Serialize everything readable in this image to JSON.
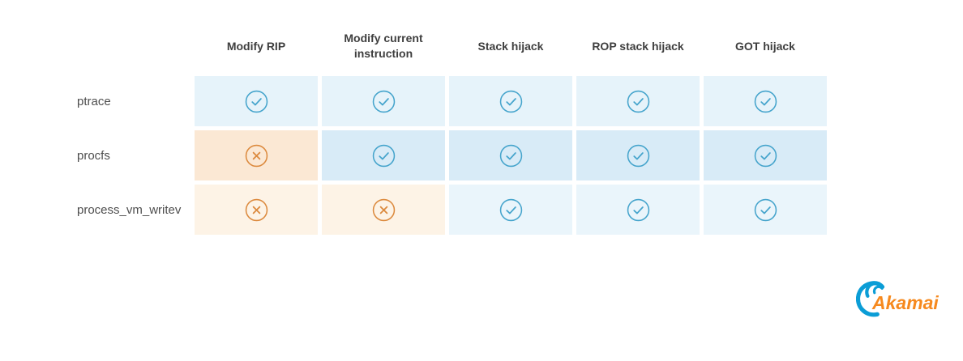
{
  "figure": {
    "columns": [
      "Modify RIP",
      "Modify current instruction",
      "Stack hijack",
      "ROP stack hijack",
      "GOT hijack"
    ],
    "rows": [
      {
        "label": "ptrace",
        "cells": [
          "check",
          "check",
          "check",
          "check",
          "check"
        ],
        "check_bg": "#E6F3FA"
      },
      {
        "label": "procfs",
        "cells": [
          "cross",
          "check",
          "check",
          "check",
          "check"
        ],
        "check_bg": "#D8EBF7",
        "cross_bg": "#FBE8D4"
      },
      {
        "label": "process_vm_writev",
        "cells": [
          "cross",
          "cross",
          "check",
          "check",
          "check"
        ],
        "check_bg": "#EAF5FB",
        "cross_bg": "#FDF3E6"
      }
    ]
  },
  "colors": {
    "check_icon": "#45A4CC",
    "cross_icon": "#DC8A3E",
    "header_text": "#3e3e3e",
    "label_text": "#4e4e4e",
    "logo_blue": "#0B9DD6",
    "logo_orange": "#F6891E"
  },
  "logo": {
    "brand": "Akamai"
  },
  "chart_data": {
    "type": "table",
    "title": "",
    "columns": [
      "Modify RIP",
      "Modify current instruction",
      "Stack hijack",
      "ROP stack hijack",
      "GOT hijack"
    ],
    "rows": [
      "ptrace",
      "procfs",
      "process_vm_writev"
    ],
    "values": [
      [
        "yes",
        "yes",
        "yes",
        "yes",
        "yes"
      ],
      [
        "no",
        "yes",
        "yes",
        "yes",
        "yes"
      ],
      [
        "no",
        "no",
        "yes",
        "yes",
        "yes"
      ]
    ],
    "legend": "check = capability supported (blue), cross = not supported (orange)",
    "legend_position": "none",
    "grid": false
  }
}
